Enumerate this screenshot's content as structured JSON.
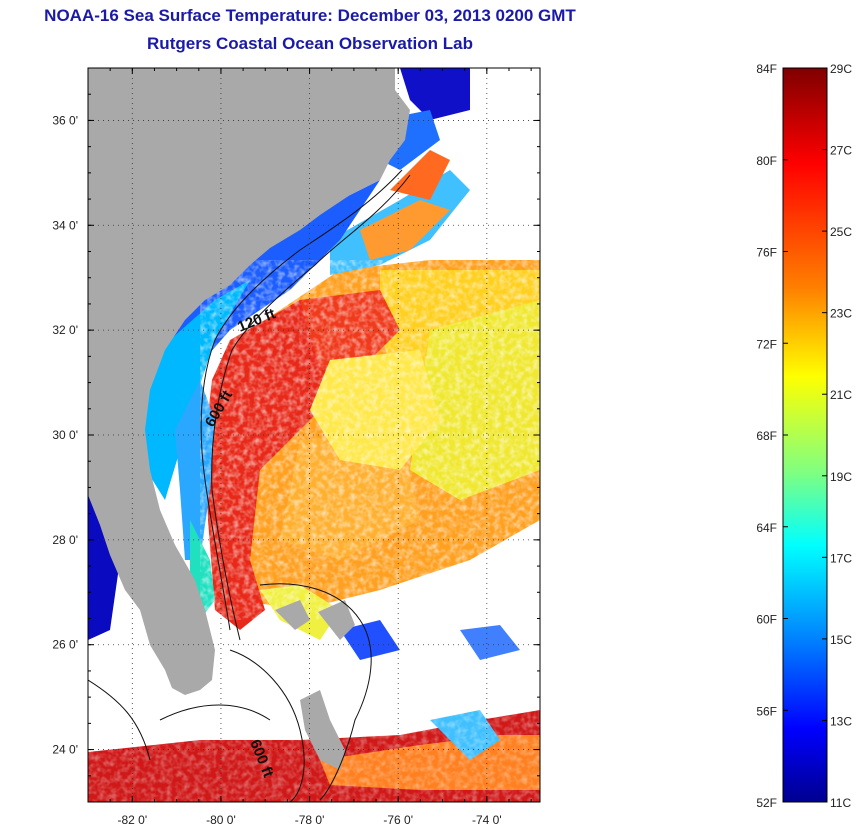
{
  "title": {
    "line1": "NOAA-16 Sea Surface Temperature:  December 03, 2013 0200 GMT",
    "line2": "Rutgers Coastal Ocean Observation Lab"
  },
  "map": {
    "lon_range": [
      -83,
      -72.8
    ],
    "lat_range": [
      23,
      37
    ],
    "lon_ticks": [
      {
        "value": -82,
        "label": "-82 0'"
      },
      {
        "value": -80,
        "label": "-80 0'"
      },
      {
        "value": -78,
        "label": "-78 0'"
      },
      {
        "value": -76,
        "label": "-76 0'"
      },
      {
        "value": -74,
        "label": "-74 0'"
      }
    ],
    "lat_ticks": [
      {
        "value": 36,
        "label": "36 0'"
      },
      {
        "value": 34,
        "label": "34 0'"
      },
      {
        "value": 32,
        "label": "32 0'"
      },
      {
        "value": 30,
        "label": "30 0'"
      },
      {
        "value": 28,
        "label": "28 0'"
      },
      {
        "value": 26,
        "label": "26 0'"
      },
      {
        "value": 24,
        "label": "24 0'"
      }
    ],
    "contour_labels": [
      "120 ft",
      "600 ft",
      "600 ft"
    ],
    "land_color": "#a9a9a9",
    "nodata_color": "#ffffff"
  },
  "colorbar": {
    "fahrenheit_labels": [
      "84F",
      "80F",
      "76F",
      "72F",
      "68F",
      "64F",
      "60F",
      "56F",
      "52F"
    ],
    "celsius_labels": [
      "29C",
      "27C",
      "25C",
      "23C",
      "21C",
      "19C",
      "17C",
      "15C",
      "13C",
      "11C"
    ],
    "colors": [
      "#7f0000",
      "#ff0000",
      "#ff8000",
      "#ffff00",
      "#80ff80",
      "#00ffff",
      "#0080ff",
      "#0000ff",
      "#00008f"
    ]
  }
}
